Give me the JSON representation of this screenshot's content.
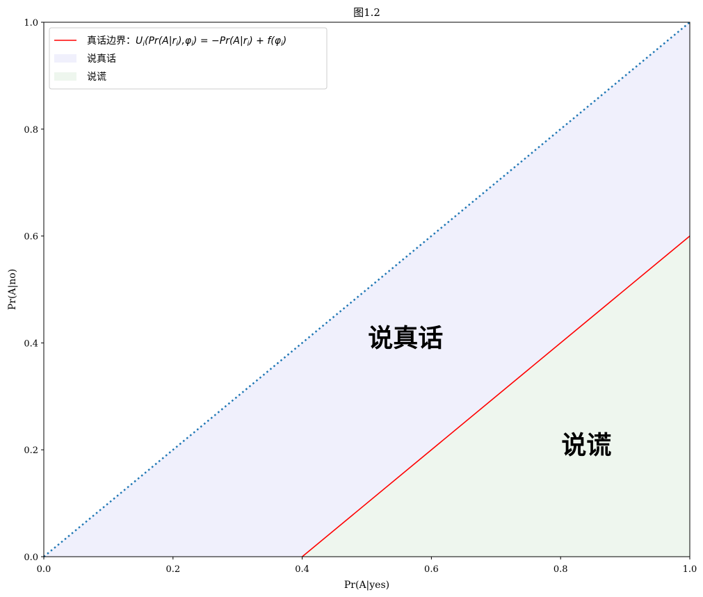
{
  "chart_data": {
    "type": "area",
    "title": "图1.2",
    "xlabel": "Pr(A|yes)",
    "ylabel": "Pr(A|no)",
    "xlim": [
      0,
      1
    ],
    "ylim": [
      0,
      1
    ],
    "x_ticks": [
      "0.0",
      "0.2",
      "0.4",
      "0.6",
      "0.8",
      "1.0"
    ],
    "y_ticks": [
      "0.0",
      "0.2",
      "0.4",
      "0.6",
      "0.8",
      "1.0"
    ],
    "grid": false,
    "legend_position": "top-left",
    "series": [
      {
        "name": "真话边界：$U_i(Pr(A|r_i),\\phi_i) = -Pr(A|r_i) + f(\\phi_i)$",
        "kind": "line",
        "color": "#ff0000",
        "x": [
          0.4,
          1.0
        ],
        "y": [
          0.0,
          0.6
        ]
      },
      {
        "name": "说真话",
        "kind": "fill",
        "color": "#f0f0fc",
        "x": [
          0.0,
          0.4,
          1.0,
          1.0
        ],
        "y": [
          0.0,
          0.0,
          0.6,
          1.0
        ]
      },
      {
        "name": "说谎",
        "kind": "fill",
        "color": "#eef6ee",
        "x": [
          0.4,
          1.0,
          1.0
        ],
        "y": [
          0.0,
          0.0,
          0.6
        ]
      },
      {
        "kind": "dotted-line",
        "color": "#1f77b4",
        "x": [
          0.0,
          1.0
        ],
        "y": [
          0.0,
          1.0
        ]
      }
    ],
    "annotations": [
      {
        "text": "说真话",
        "x": 0.56,
        "y": 0.41
      },
      {
        "text": "说谎",
        "x": 0.84,
        "y": 0.21
      }
    ]
  }
}
